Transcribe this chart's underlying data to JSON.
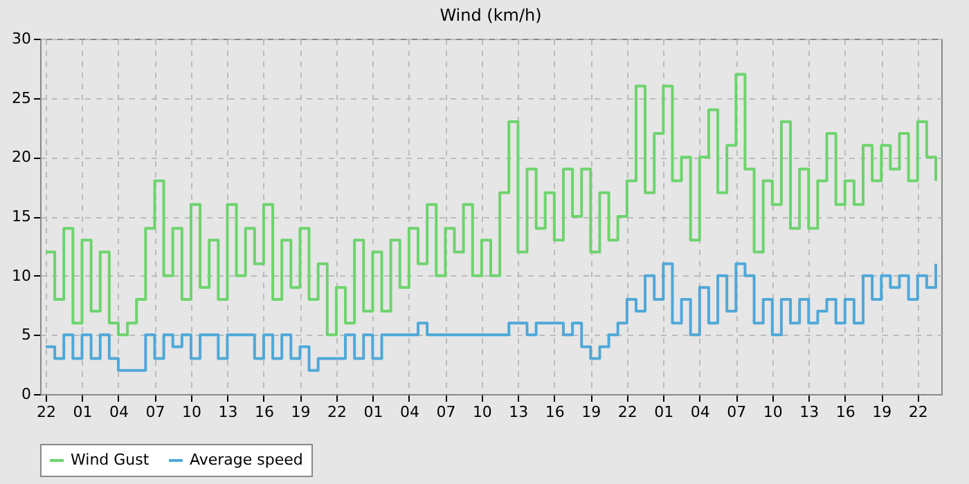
{
  "chart_data": {
    "type": "step",
    "title": "Wind (km/h)",
    "ylim": [
      0,
      30
    ],
    "categories": [
      "22",
      null,
      null,
      null,
      "01",
      null,
      null,
      null,
      "04",
      null,
      null,
      null,
      "07",
      null,
      null,
      null,
      "10",
      null,
      null,
      null,
      "13",
      null,
      null,
      null,
      "16",
      null,
      null,
      null,
      "19",
      null,
      null,
      null,
      "22",
      null,
      null,
      null,
      "01",
      null,
      null,
      null,
      "04",
      null,
      null,
      null,
      "07",
      null,
      null,
      null,
      "10",
      null,
      null,
      null,
      "13",
      null,
      null,
      null,
      "16",
      null,
      null,
      null,
      "19",
      null,
      null,
      null,
      "22",
      null,
      null,
      null,
      "01",
      null,
      null,
      null,
      "04",
      null,
      null,
      null,
      "07",
      null,
      null,
      null,
      "10",
      null,
      null,
      null,
      "13",
      null,
      null,
      null,
      "16",
      null,
      null,
      null,
      "19",
      null,
      null,
      null,
      "22",
      null,
      null
    ],
    "yticks": [
      0,
      5,
      10,
      15,
      20,
      25,
      30
    ],
    "grid": true,
    "legend": "bottom",
    "line_style": "solid",
    "marker": "none",
    "series": [
      {
        "name": "Wind Gust",
        "color": "#6dd46d",
        "values": [
          12,
          8,
          14,
          6,
          13,
          7,
          12,
          6,
          5,
          6,
          8,
          14,
          18,
          10,
          14,
          8,
          16,
          9,
          13,
          8,
          16,
          10,
          14,
          11,
          16,
          8,
          13,
          9,
          14,
          8,
          11,
          5,
          9,
          6,
          13,
          7,
          12,
          7,
          13,
          9,
          14,
          11,
          16,
          10,
          14,
          12,
          16,
          10,
          13,
          10,
          17,
          23,
          12,
          19,
          14,
          17,
          13,
          19,
          15,
          19,
          12,
          17,
          13,
          15,
          18,
          26,
          17,
          22,
          26,
          18,
          20,
          13,
          20,
          24,
          17,
          21,
          27,
          19,
          12,
          18,
          16,
          23,
          14,
          19,
          14,
          18,
          22,
          16,
          18,
          16,
          21,
          18,
          21,
          19,
          22,
          18,
          23,
          20,
          18
        ]
      },
      {
        "name": "Average speed",
        "color": "#4fa8d8",
        "values": [
          4,
          3,
          5,
          3,
          5,
          3,
          5,
          3,
          2,
          2,
          2,
          5,
          3,
          5,
          4,
          5,
          3,
          5,
          5,
          3,
          5,
          5,
          5,
          3,
          5,
          3,
          5,
          3,
          4,
          2,
          3,
          3,
          3,
          5,
          3,
          5,
          3,
          5,
          5,
          5,
          5,
          6,
          5,
          5,
          5,
          5,
          5,
          5,
          5,
          5,
          5,
          6,
          6,
          5,
          6,
          6,
          6,
          5,
          6,
          4,
          3,
          4,
          5,
          6,
          8,
          7,
          10,
          8,
          11,
          6,
          8,
          5,
          9,
          6,
          10,
          7,
          11,
          10,
          6,
          8,
          5,
          8,
          6,
          8,
          6,
          7,
          8,
          6,
          8,
          6,
          10,
          8,
          10,
          9,
          10,
          8,
          10,
          9,
          11
        ]
      }
    ]
  }
}
